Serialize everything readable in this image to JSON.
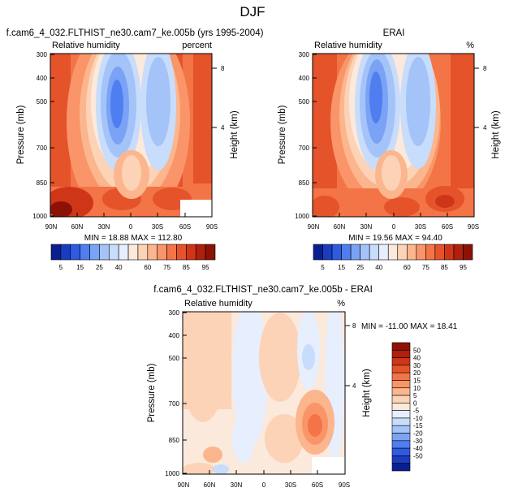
{
  "figure": {
    "title": "DJF"
  },
  "chart_data": [
    {
      "type": "heatmap",
      "case_title": "f.cam6_4_032.FLTHIST_ne30.cam7_ke.005b (yrs 1995-2004)",
      "left_label": "Relative humidity",
      "right_label": "percent",
      "ylabel": "Pressure (mb)",
      "ylabel_right": "Height (km)",
      "x_ticks": [
        "90N",
        "60N",
        "30N",
        "0",
        "30S",
        "60S",
        "90S"
      ],
      "y_ticks": [
        "300",
        "400",
        "500",
        "700",
        "850",
        "1000"
      ],
      "height_ticks": [
        "8",
        "4"
      ],
      "stats": "MIN = 18.88   MAX = 112.80",
      "pressure_range_mb": [
        1000,
        300
      ],
      "lat_range": [
        "90N",
        "90S"
      ]
    },
    {
      "type": "heatmap",
      "case_title": "ERAI",
      "left_label": "Relative humidity",
      "right_label": "%",
      "ylabel": "Pressure (mb)",
      "ylabel_right": "Height (km)",
      "x_ticks": [
        "90N",
        "60N",
        "30N",
        "0",
        "30S",
        "60S",
        "90S"
      ],
      "y_ticks": [
        "300",
        "400",
        "500",
        "700",
        "850",
        "1000"
      ],
      "height_ticks": [
        "8",
        "4"
      ],
      "stats": "MIN = 19.56   MAX = 94.40",
      "pressure_range_mb": [
        1000,
        300
      ],
      "lat_range": [
        "90N",
        "90S"
      ]
    },
    {
      "type": "heatmap",
      "case_title": "f.cam6_4_032.FLTHIST_ne30.cam7_ke.005b - ERAI",
      "left_label": "Relative humidity",
      "right_label": "%",
      "ylabel": "Pressure (mb)",
      "ylabel_right": "Height (km)",
      "x_ticks": [
        "90N",
        "60N",
        "30N",
        "0",
        "30S",
        "60S",
        "90S"
      ],
      "y_ticks": [
        "300",
        "400",
        "500",
        "700",
        "850",
        "1000"
      ],
      "height_ticks": [
        "8",
        "4"
      ],
      "stats": "MIN = -11.00   MAX = 18.41",
      "pressure_range_mb": [
        1000,
        300
      ],
      "lat_range": [
        "90N",
        "90S"
      ]
    }
  ],
  "colorbar_abs": {
    "labels": [
      "5",
      "15",
      "25",
      "40",
      "60",
      "75",
      "85",
      "95"
    ],
    "colors": [
      "#0a1f8f",
      "#1a3cc0",
      "#2f5be0",
      "#4f7ef0",
      "#7aa3f5",
      "#a4c3f8",
      "#c8dcfb",
      "#e7eefd",
      "#fbe9dc",
      "#fcd3b6",
      "#fbb68e",
      "#f99569",
      "#f37446",
      "#e5532a",
      "#cf3618",
      "#b0200c",
      "#8c1205"
    ]
  },
  "colorbar_diff": {
    "labels": [
      "50",
      "40",
      "30",
      "20",
      "15",
      "10",
      "5",
      "0",
      "-5",
      "-10",
      "-15",
      "-20",
      "-30",
      "-40",
      "-50"
    ],
    "colors": [
      "#8c1205",
      "#b0200c",
      "#cf3618",
      "#e5532a",
      "#f37446",
      "#f99569",
      "#fbb68e",
      "#fcd3b6",
      "#fbe9dc",
      "#e7eefd",
      "#c8dcfb",
      "#a4c3f8",
      "#7aa3f5",
      "#4f7ef0",
      "#2f5be0",
      "#1a3cc0",
      "#0a1f8f"
    ]
  }
}
